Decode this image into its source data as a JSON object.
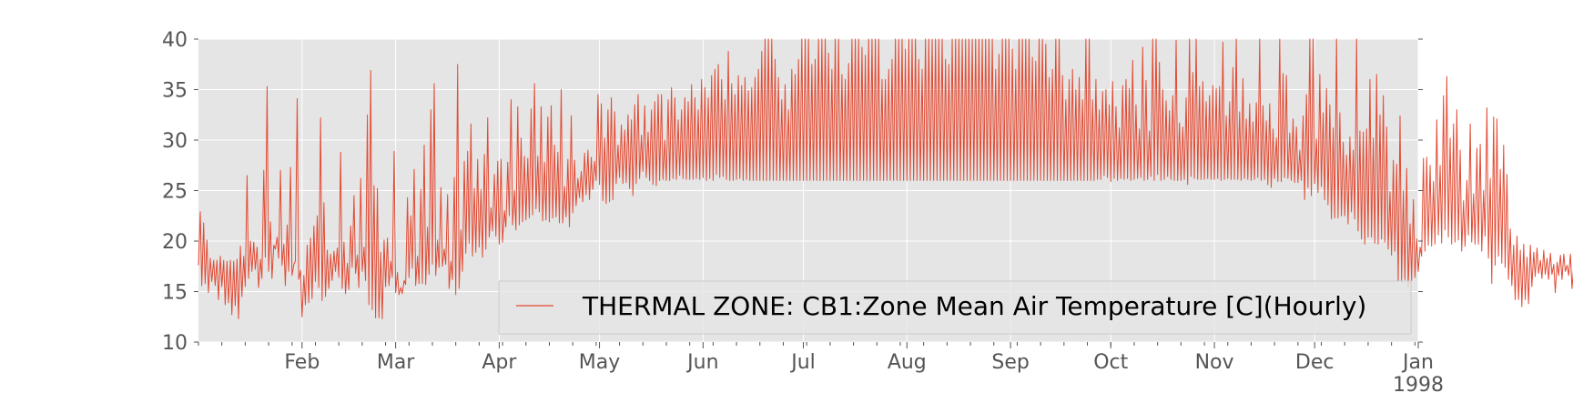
{
  "chart_data": {
    "type": "line",
    "title": "",
    "xlabel": "",
    "ylabel": "",
    "x_range": [
      "1997-01-01",
      "1998-01-01"
    ],
    "ylim": [
      10,
      40
    ],
    "yticks": [
      10,
      15,
      20,
      25,
      30,
      35,
      40
    ],
    "ytick_labels": [
      "10",
      "15",
      "20",
      "25",
      "30",
      "35",
      "40"
    ],
    "xticks": [
      {
        "date": "1997-02-01",
        "label": "Feb"
      },
      {
        "date": "1997-03-01",
        "label": "Mar"
      },
      {
        "date": "1997-04-01",
        "label": "Apr"
      },
      {
        "date": "1997-05-01",
        "label": "May"
      },
      {
        "date": "1997-06-01",
        "label": "Jun"
      },
      {
        "date": "1997-07-01",
        "label": "Jul"
      },
      {
        "date": "1997-08-01",
        "label": "Aug"
      },
      {
        "date": "1997-09-01",
        "label": "Sep"
      },
      {
        "date": "1997-10-01",
        "label": "Oct"
      },
      {
        "date": "1997-11-01",
        "label": "Nov"
      },
      {
        "date": "1997-12-01",
        "label": "Dec"
      },
      {
        "date": "1998-01-01",
        "label": "Jan\n1998"
      }
    ],
    "grid": true,
    "legend_placement": "lower-right",
    "background_color": "#e5e5e5",
    "series": [
      {
        "name": "THERMAL ZONE: CB1:Zone Mean Air Temperature [C](Hourly)",
        "color": "#e24a33",
        "x_unit": "date (daily envelope of hourly values)",
        "daily_min": [
          17.6,
          15.6,
          15.8,
          14.9,
          16.0,
          15.6,
          14.2,
          15.5,
          13.7,
          13.9,
          12.7,
          13.6,
          12.3,
          14.5,
          15.5,
          16.3,
          17.0,
          17.2,
          15.4,
          16.3,
          18.4,
          17.0,
          16.3,
          19.2,
          18.3,
          17.6,
          15.6,
          17.0,
          16.6,
          18.0,
          16.2,
          12.5,
          13.7,
          13.9,
          14.3,
          16.0,
          15.4,
          14.1,
          14.5,
          15.3,
          16.1,
          17.0,
          16.4,
          15.3,
          14.8,
          15.2,
          17.4,
          16.8,
          15.4,
          17.0,
          16.1,
          13.7,
          13.2,
          12.4,
          12.4,
          12.3,
          15.5,
          15.6,
          16.4,
          14.9,
          14.7,
          14.8,
          15.7,
          16.4,
          17.3,
          15.6,
          15.8,
          15.8,
          15.7,
          16.7,
          17.7,
          16.6,
          17.4,
          17.5,
          17.7,
          15.3,
          16.2,
          14.7,
          15.3,
          17.0,
          18.8,
          19.8,
          18.5,
          18.9,
          19.4,
          18.4,
          19.2,
          20.4,
          21.0,
          20.5,
          19.7,
          19.9,
          21.4,
          22.5,
          21.6,
          21.1,
          21.6,
          21.9,
          22.1,
          22.3,
          22.6,
          23.2,
          22.9,
          22.0,
          22.1,
          21.9,
          22.3,
          22.4,
          21.8,
          21.8,
          22.4,
          21.4,
          22.8,
          23.5,
          24.3,
          23.9,
          24.6,
          24.1,
          25.1,
          26.0,
          25.6,
          24.0,
          23.7,
          23.9,
          24.1,
          25.7,
          26.3,
          25.7,
          25.8,
          25.2,
          24.5,
          25.7,
          26.2,
          26.9,
          26.3,
          26.0,
          25.6,
          25.5,
          26.0,
          26.1,
          26.0,
          26.0,
          26.2,
          26.1,
          26.5,
          26.2,
          26.1,
          26.1,
          26.1,
          26.2,
          26.1,
          26.3,
          26.0,
          26.2,
          26.0,
          26.6,
          26.3,
          26.4,
          26.1,
          26.0,
          26.0,
          26.1,
          26.2,
          26.0,
          26.1,
          26.0,
          26.0,
          26.0,
          26.0,
          26.0,
          26.0,
          26.0,
          26.0,
          26.0,
          26.0,
          26.0,
          26.0,
          26.0,
          26.0,
          26.0,
          26.0,
          26.0,
          26.0,
          26.0,
          26.0,
          26.0,
          26.0,
          26.0,
          26.0,
          26.0,
          26.0,
          26.0,
          26.0,
          26.0,
          26.0,
          26.0,
          26.0,
          26.0,
          26.0,
          26.0,
          26.0,
          26.0,
          26.0,
          26.0,
          26.0,
          26.0,
          26.0,
          26.0,
          26.0,
          26.0,
          26.0,
          26.0,
          26.0,
          26.0,
          26.0,
          26.0,
          26.0,
          26.0,
          26.0,
          26.0,
          26.0,
          26.0,
          26.0,
          26.0,
          26.0,
          26.0,
          26.0,
          26.0,
          26.0,
          26.0,
          26.0,
          26.0,
          26.0,
          26.0,
          26.0,
          26.0,
          26.0,
          26.0,
          26.0,
          26.0,
          26.0,
          26.0,
          26.0,
          26.0,
          26.0,
          26.0,
          26.0,
          26.0,
          26.0,
          26.0,
          26.0,
          26.0,
          26.0,
          26.0,
          26.0,
          26.0,
          26.0,
          26.0,
          26.0,
          26.0,
          26.0,
          26.0,
          26.0,
          26.0,
          26.0,
          26.0,
          26.0,
          26.0,
          26.0,
          26.1,
          26.1,
          26.5,
          26.3,
          25.9,
          26.2,
          26.0,
          26.2,
          26.1,
          26.2,
          26.0,
          26.1,
          26.2,
          26.3,
          26.0,
          26.1,
          26.4,
          26.0,
          26.6,
          26.0,
          26.1,
          26.4,
          26.1,
          26.0,
          26.0,
          26.0,
          26.1,
          25.6,
          26.4,
          26.2,
          26.1,
          26.1,
          26.1,
          26.2,
          26.1,
          26.1,
          26.2,
          26.0,
          26.1,
          26.2,
          26.1,
          26.1,
          26.1,
          26.0,
          26.2,
          26.1,
          26.0,
          26.1,
          26.3,
          26.0,
          26.1,
          25.6,
          25.3,
          26.2,
          25.9,
          25.9,
          26.3,
          26.2,
          26.0,
          25.8,
          25.8,
          26.0,
          24.1,
          25.3,
          24.5,
          25.7,
          24.8,
          25.4,
          24.1,
          23.6,
          22.2,
          22.3,
          22.3,
          22.5,
          22.5,
          21.7,
          22.9,
          22.2,
          21.0,
          20.2,
          19.7,
          20.4,
          20.4,
          19.8,
          19.7,
          20.2,
          19.9,
          19.2,
          18.6,
          19.0,
          16.0,
          16.0,
          16.2,
          15.5,
          16.1,
          16.4,
          17.0,
          18.5,
          19.0,
          19.6,
          19.5,
          19.7,
          20.6,
          19.8,
          21.1,
          20.4,
          19.7,
          19.9,
          20.1,
          19.0,
          19.5,
          20.6,
          19.9,
          19.7,
          19.7,
          19.0,
          20.5,
          18.3,
          15.8,
          17.6,
          18.5,
          17.8,
          17.4,
          16.2,
          15.6,
          14.2,
          14.2,
          13.5,
          14.2,
          13.8,
          15.5,
          16.5,
          16.8,
          16.3,
          16.7,
          16.2,
          16.7,
          14.9,
          16.6,
          16.2,
          17.0,
          16.6,
          15.3,
          15.0,
          17.7,
          15.7,
          16.0,
          18.6,
          18.4,
          18.4,
          19.1,
          18.9,
          17.0,
          17.0,
          15.4,
          14.0
        ],
        "daily_max": [
          22.9,
          21.8,
          20.1,
          18.3,
          18.1,
          18.1,
          18.5,
          18.1,
          18.0,
          18.1,
          18.0,
          18.2,
          19.5,
          18.5,
          26.5,
          20.0,
          19.9,
          19.4,
          18.2,
          27.0,
          35.3,
          21.9,
          19.6,
          20.4,
          27.0,
          19.7,
          21.6,
          27.3,
          17.7,
          34.1,
          17.1,
          16.6,
          19.6,
          20.3,
          21.5,
          22.5,
          32.2,
          23.8,
          19.1,
          18.7,
          19.0,
          19.3,
          28.8,
          19.9,
          17.8,
          21.5,
          24.5,
          18.6,
          26.2,
          19.4,
          32.5,
          36.9,
          25.5,
          25.2,
          18.9,
          20.1,
          20.3,
          18.0,
          28.9,
          16.9,
          15.4,
          16.1,
          24.3,
          22.5,
          27.1,
          18.5,
          25.1,
          29.5,
          21.4,
          33.0,
          35.6,
          20.1,
          25.3,
          19.2,
          24.6,
          18.0,
          26.3,
          37.5,
          21.1,
          27.9,
          28.9,
          31.6,
          25.2,
          28.1,
          25.1,
          28.6,
          32.2,
          23.3,
          26.6,
          27.9,
          28.1,
          23.0,
          27.8,
          34.0,
          25.0,
          33.3,
          30.2,
          28.4,
          28.2,
          33.1,
          35.6,
          28.4,
          33.3,
          27.8,
          32.3,
          33.4,
          29.5,
          28.8,
          35.0,
          25.4,
          28.1,
          32.4,
          28.0,
          26.2,
          26.9,
          28.7,
          29.0,
          28.3,
          27.9,
          34.5,
          33.6,
          30.2,
          33.0,
          34.2,
          32.8,
          29.5,
          31.5,
          31.0,
          32.5,
          32.0,
          33.5,
          34.5,
          30.5,
          33.4,
          30.8,
          33.0,
          33.8,
          34.5,
          34.5,
          30.0,
          34.0,
          35.2,
          34.2,
          32.0,
          33.0,
          34.2,
          33.8,
          35.5,
          34.2,
          33.0,
          36.0,
          35.2,
          34.2,
          36.4,
          37.0,
          37.5,
          36.0,
          34.0,
          38.8,
          35.6,
          34.5,
          36.4,
          35.4,
          36.2,
          34.9,
          35.2,
          36.2,
          37.0,
          38.8,
          40.0,
          40.0,
          40.0,
          38.0,
          36.2,
          34.0,
          35.5,
          33.0,
          37.0,
          36.5,
          38.0,
          40.0,
          40.0,
          40.0,
          37.5,
          38.0,
          40.0,
          40.0,
          40.0,
          38.6,
          37.0,
          40.0,
          40.0,
          36.5,
          36.0,
          37.6,
          40.0,
          40.0,
          40.0,
          39.2,
          38.4,
          40.0,
          40.0,
          40.0,
          40.0,
          36.0,
          36.0,
          37.0,
          38.0,
          40.0,
          40.0,
          40.0,
          39.0,
          40.0,
          40.0,
          40.0,
          38.0,
          37.0,
          40.0,
          40.0,
          40.0,
          40.0,
          40.0,
          40.0,
          38.0,
          37.5,
          40.0,
          40.0,
          40.0,
          40.0,
          40.0,
          40.0,
          40.0,
          40.0,
          40.0,
          40.0,
          40.0,
          40.0,
          40.0,
          37.0,
          38.5,
          40.0,
          40.0,
          40.0,
          39.0,
          37.0,
          40.0,
          40.0,
          40.0,
          40.0,
          38.2,
          37.8,
          40.0,
          40.0,
          39.5,
          36.2,
          37.0,
          40.0,
          40.0,
          36.4,
          34.0,
          36.0,
          37.0,
          35.0,
          36.2,
          34.0,
          40.0,
          40.0,
          34.0,
          36.0,
          33.0,
          34.8,
          35.0,
          33.5,
          35.8,
          33.3,
          31.2,
          35.4,
          36.0,
          35.1,
          37.9,
          33.5,
          31.1,
          39.2,
          35.9,
          30.9,
          40.0,
          40.0,
          37.7,
          35.0,
          33.9,
          32.9,
          34.4,
          39.9,
          31.7,
          31.3,
          34.2,
          40.0,
          36.7,
          40.0,
          35.3,
          35.8,
          33.8,
          34.4,
          35.4,
          35.1,
          35.3,
          39.7,
          32.4,
          33.8,
          37.2,
          40.0,
          32.8,
          36.1,
          32.1,
          33.6,
          31.8,
          33.7,
          40.0,
          33.4,
          31.9,
          33.6,
          31.1,
          30.2,
          40.0,
          36.6,
          36.4,
          30.7,
          32.1,
          31.3,
          29.0,
          32.4,
          34.5,
          40.0,
          40.0,
          30.1,
          36.5,
          32.7,
          35.1,
          33.5,
          31.2,
          40.0,
          32.7,
          29.8,
          28.5,
          30.3,
          29.0,
          40.0,
          30.9,
          30.8,
          31.1,
          36.0,
          30.2,
          36.5,
          32.5,
          34.4,
          31.3,
          24.9,
          28.0,
          27.6,
          32.4,
          25.0,
          27.2,
          21.7,
          24.1,
          20.2,
          19.4,
          28.2,
          28.3,
          27.5,
          25.9,
          32.0,
          27.5,
          34.4,
          36.3,
          30.2,
          31.6,
          33.0,
          29.0,
          24.0,
          26.0,
          31.6,
          24.7,
          29.2,
          29.6,
          25.0,
          33.2,
          26.2,
          32.3,
          32.1,
          27.1,
          29.5,
          26.6,
          21.2,
          19.6,
          20.5,
          19.1,
          19.7,
          18.4,
          19.6,
          18.9,
          19.3,
          18.1,
          19.1,
          18.3,
          18.8,
          17.7,
          17.9,
          18.6,
          18.7,
          17.6,
          18.7,
          17.6,
          18.5,
          18.7,
          19.5,
          18.5,
          18.8,
          18.6,
          18.7,
          18.8,
          18.8,
          18.8,
          18.9,
          17.2,
          18.9
        ]
      }
    ]
  }
}
